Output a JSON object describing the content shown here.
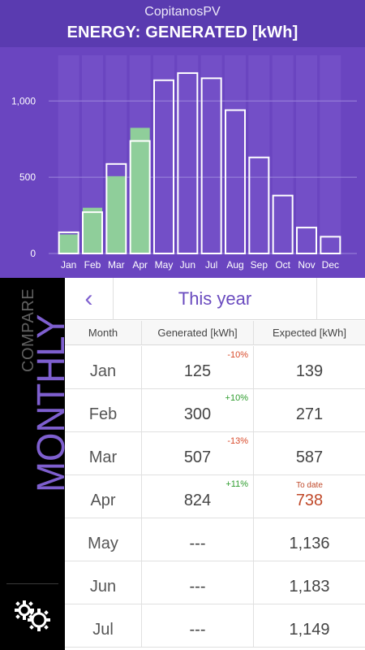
{
  "header": {
    "app_title": "CopitanosPV",
    "screen_title": "ENERGY: GENERATED [kWh]"
  },
  "chart_data": {
    "type": "bar",
    "categories": [
      "Jan",
      "Feb",
      "Mar",
      "Apr",
      "May",
      "Jun",
      "Jul",
      "Aug",
      "Sep",
      "Oct",
      "Nov",
      "Dec"
    ],
    "series": [
      {
        "values": [
          125,
          300,
          507,
          824,
          null,
          null,
          null,
          null,
          null,
          null,
          null,
          null
        ]
      },
      {
        "values": [
          139,
          271,
          587,
          738,
          1136,
          1183,
          1149,
          940,
          630,
          380,
          170,
          110
        ]
      }
    ],
    "yticks": [
      0,
      500,
      1000
    ],
    "ytick_labels": [
      "0",
      "500",
      "1,000"
    ],
    "ylim": [
      0,
      1300
    ],
    "colors": {
      "generated_fill": "#8fce9a",
      "expected_stroke": "#ffffff",
      "background": "#6a45c0",
      "band": "#7a58cc"
    }
  },
  "sidebar": {
    "compare_label": "COMPARE",
    "mode_label": "MONTHLY",
    "settings_icon": "gears-icon"
  },
  "nav": {
    "back_icon": "‹",
    "period_title": "This year"
  },
  "table": {
    "headers": [
      "Month",
      "Generated [kWh]",
      "Expected [kWh]"
    ],
    "rows": [
      {
        "month": "Jan",
        "generated": "125",
        "delta": "-10%",
        "delta_dir": "neg",
        "expected": "139",
        "note": ""
      },
      {
        "month": "Feb",
        "generated": "300",
        "delta": "+10%",
        "delta_dir": "pos",
        "expected": "271",
        "note": ""
      },
      {
        "month": "Mar",
        "generated": "507",
        "delta": "-13%",
        "delta_dir": "neg",
        "expected": "587",
        "note": ""
      },
      {
        "month": "Apr",
        "generated": "824",
        "delta": "+11%",
        "delta_dir": "pos",
        "expected": "738",
        "note": "To date"
      },
      {
        "month": "May",
        "generated": "---",
        "delta": "",
        "delta_dir": "",
        "expected": "1,136",
        "note": ""
      },
      {
        "month": "Jun",
        "generated": "---",
        "delta": "",
        "delta_dir": "",
        "expected": "1,183",
        "note": ""
      },
      {
        "month": "Jul",
        "generated": "---",
        "delta": "",
        "delta_dir": "",
        "expected": "1,149",
        "note": ""
      }
    ]
  }
}
